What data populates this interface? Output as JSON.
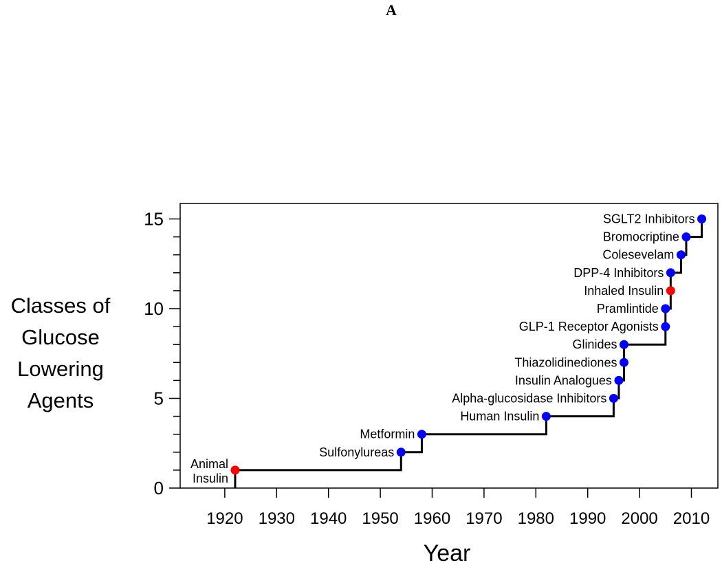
{
  "panel_label": "A",
  "chart_data": {
    "type": "line",
    "subtype": "step",
    "xlabel": "Year",
    "ylabel_lines": [
      "Classes of",
      "Glucose",
      "Lowering",
      "Agents"
    ],
    "xlim": [
      1910,
      2014
    ],
    "ylim": [
      0,
      15.8
    ],
    "xticks": [
      1920,
      1930,
      1940,
      1950,
      1960,
      1970,
      1980,
      1990,
      2000,
      2010
    ],
    "yticks_labeled": [
      0,
      5,
      10,
      15
    ],
    "yticks_minor": [
      1,
      2,
      3,
      4,
      6,
      7,
      8,
      9,
      11,
      12,
      13,
      14
    ],
    "grid": false,
    "colors": {
      "line": "#000000",
      "blue_point": "#0000ff",
      "red_point": "#ff0000"
    },
    "points": [
      {
        "label": "Animal Insulin",
        "year": 1922,
        "count": 1,
        "color": "red"
      },
      {
        "label": "Sulfonylureas",
        "year": 1954,
        "count": 2,
        "color": "blue"
      },
      {
        "label": "Metformin",
        "year": 1958,
        "count": 3,
        "color": "blue"
      },
      {
        "label": "Human Insulin",
        "year": 1982,
        "count": 4,
        "color": "blue"
      },
      {
        "label": "Alpha-glucosidase Inhibitors",
        "year": 1995,
        "count": 5,
        "color": "blue"
      },
      {
        "label": "Insulin Analogues",
        "year": 1996,
        "count": 6,
        "color": "blue"
      },
      {
        "label": "Thiazolidinediones",
        "year": 1997,
        "count": 7,
        "color": "blue"
      },
      {
        "label": "Glinides",
        "year": 1997,
        "count": 8,
        "color": "blue"
      },
      {
        "label": "GLP-1 Receptor Agonists",
        "year": 2005,
        "count": 9,
        "color": "blue"
      },
      {
        "label": "Pramlintide",
        "year": 2005,
        "count": 10,
        "color": "blue"
      },
      {
        "label": "Inhaled Insulin",
        "year": 2006,
        "count": 11,
        "color": "red"
      },
      {
        "label": "DPP-4 Inhibitors",
        "year": 2006,
        "count": 12,
        "color": "blue"
      },
      {
        "label": "Colesevelam",
        "year": 2008,
        "count": 13,
        "color": "blue"
      },
      {
        "label": "Bromocriptine",
        "year": 2009,
        "count": 14,
        "color": "blue"
      },
      {
        "label": "SGLT2 Inhibitors",
        "year": 2012,
        "count": 15,
        "color": "blue"
      }
    ]
  }
}
